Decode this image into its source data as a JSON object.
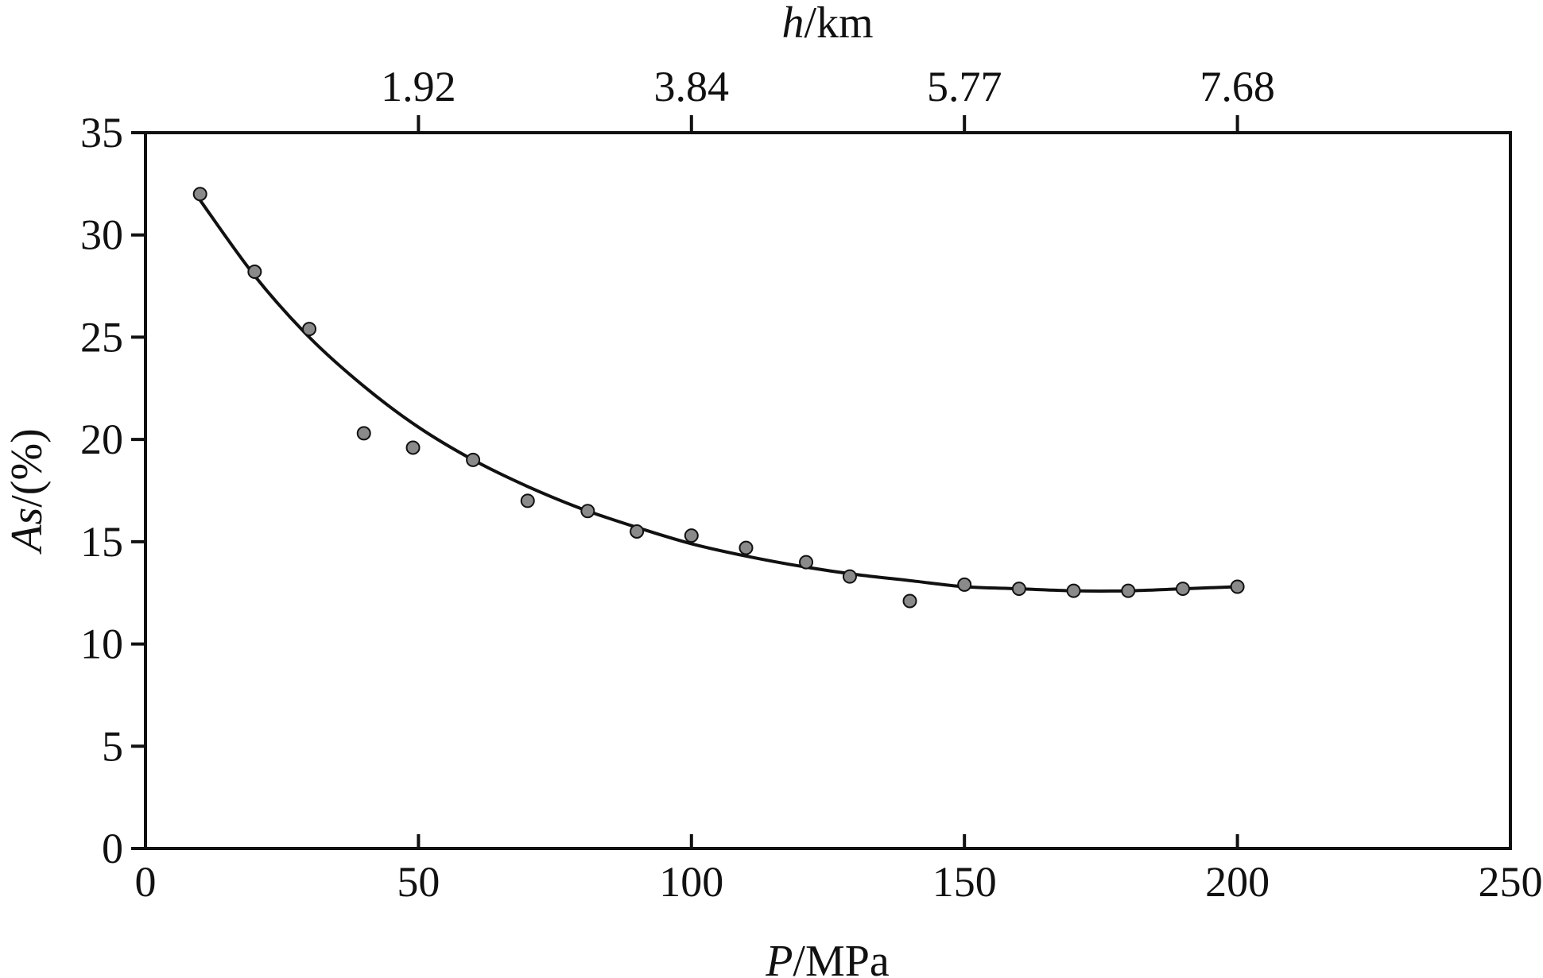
{
  "chart_data": {
    "type": "scatter",
    "xlabel": {
      "var": "P",
      "unit": "/MPa"
    },
    "ylabel": {
      "var": "As",
      "unit": "/(%)"
    },
    "x2label": {
      "var": "h",
      "unit": "/km"
    },
    "xlim": [
      0,
      250
    ],
    "ylim": [
      0,
      35
    ],
    "x_ticks": [
      0,
      50,
      100,
      150,
      200,
      250
    ],
    "y_ticks": [
      0,
      5,
      10,
      15,
      20,
      25,
      30,
      35
    ],
    "x2_ticks": [
      {
        "label": "1.92",
        "at_P": 50
      },
      {
        "label": "3.84",
        "at_P": 100
      },
      {
        "label": "5.77",
        "at_P": 150
      },
      {
        "label": "7.68",
        "at_P": 200
      }
    ],
    "grid": false,
    "legend": "none",
    "series": [
      {
        "kind": "scatter",
        "marker_color": "#8a8a8a",
        "x": [
          10,
          20,
          30,
          40,
          49,
          60,
          70,
          81,
          90,
          100,
          110,
          121,
          129,
          140,
          150,
          160,
          170,
          180,
          190,
          200
        ],
        "y": [
          32.0,
          28.2,
          25.4,
          20.3,
          19.6,
          19.0,
          17.0,
          16.5,
          15.5,
          15.3,
          14.7,
          14.0,
          13.3,
          12.1,
          12.9,
          12.7,
          12.6,
          12.6,
          12.7,
          12.8
        ]
      },
      {
        "kind": "fit-line",
        "line_color": "#111111",
        "x": [
          10,
          20,
          30,
          40,
          50,
          60,
          70,
          80,
          90,
          100,
          110,
          120,
          130,
          140,
          150,
          160,
          170,
          180,
          190,
          200
        ],
        "y": [
          31.7,
          28.0,
          25.0,
          22.6,
          20.6,
          19.0,
          17.7,
          16.6,
          15.7,
          14.9,
          14.3,
          13.8,
          13.4,
          13.1,
          12.8,
          12.7,
          12.6,
          12.6,
          12.7,
          12.8
        ]
      }
    ]
  }
}
